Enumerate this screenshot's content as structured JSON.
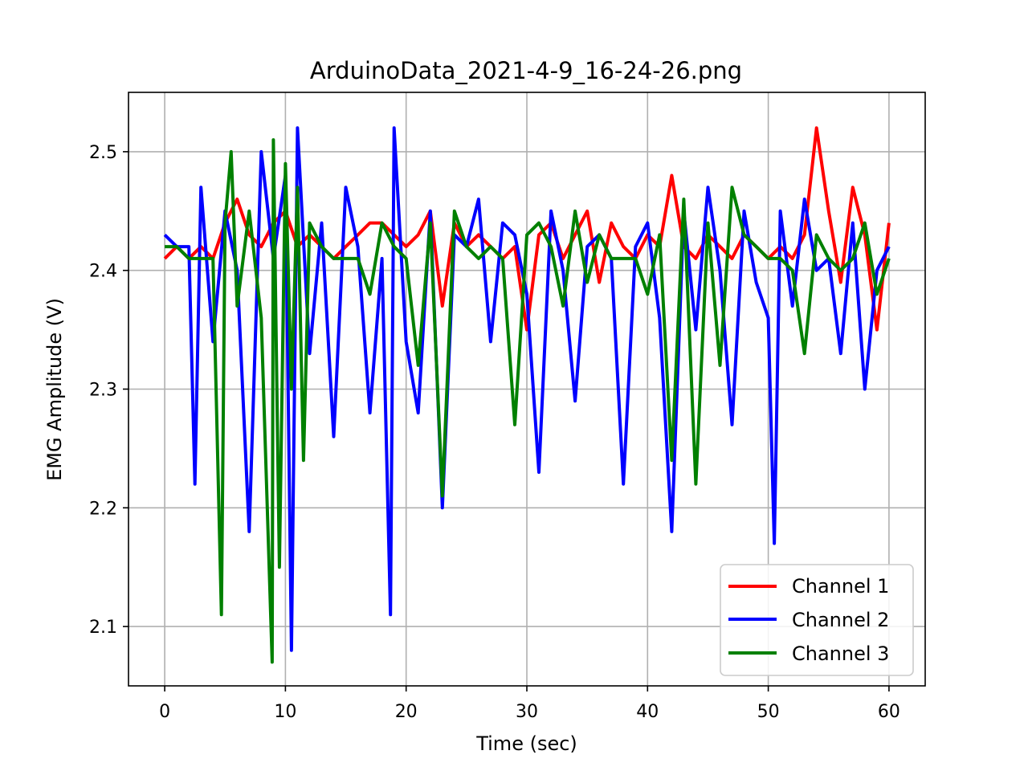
{
  "chart_data": {
    "type": "line",
    "title": "ArduinoData_2021-4-9_16-24-26.png",
    "xlabel": "Time (sec)",
    "ylabel": "EMG Amplitude (V)",
    "xlim": [
      -3,
      63
    ],
    "ylim": [
      2.05,
      2.55
    ],
    "xticks": [
      0,
      10,
      20,
      30,
      40,
      50,
      60
    ],
    "yticks": [
      2.1,
      2.2,
      2.3,
      2.4,
      2.5
    ],
    "grid": true,
    "legend_position": "lower-right",
    "series": [
      {
        "name": "Channel 1",
        "color": "#ff0000",
        "x": [
          0,
          1,
          2,
          3,
          4,
          5,
          6,
          7,
          8,
          9,
          10,
          11,
          12,
          13,
          14,
          15,
          16,
          17,
          18,
          19,
          20,
          21,
          22,
          23,
          24,
          25,
          26,
          27,
          28,
          29,
          30,
          31,
          32,
          33,
          34,
          35,
          36,
          37,
          38,
          39,
          40,
          41,
          42,
          43,
          44,
          45,
          46,
          47,
          48,
          49,
          50,
          51,
          52,
          53,
          54,
          55,
          56,
          57,
          58,
          59,
          60
        ],
        "y": [
          2.41,
          2.42,
          2.41,
          2.42,
          2.41,
          2.44,
          2.46,
          2.43,
          2.42,
          2.44,
          2.45,
          2.42,
          2.43,
          2.42,
          2.41,
          2.42,
          2.43,
          2.44,
          2.44,
          2.43,
          2.42,
          2.43,
          2.45,
          2.37,
          2.44,
          2.42,
          2.43,
          2.42,
          2.41,
          2.42,
          2.35,
          2.43,
          2.44,
          2.41,
          2.43,
          2.45,
          2.39,
          2.44,
          2.42,
          2.41,
          2.43,
          2.42,
          2.48,
          2.42,
          2.41,
          2.43,
          2.42,
          2.41,
          2.43,
          2.42,
          2.41,
          2.42,
          2.41,
          2.43,
          2.52,
          2.45,
          2.39,
          2.47,
          2.43,
          2.35,
          2.44
        ]
      },
      {
        "name": "Channel 2",
        "color": "#0000ff",
        "x": [
          0,
          1,
          2,
          2.5,
          3,
          4,
          5,
          6,
          7,
          8,
          9,
          10,
          10.5,
          11,
          12,
          13,
          14,
          15,
          16,
          17,
          18,
          18.7,
          19,
          20,
          21,
          22,
          23,
          24,
          25,
          26,
          27,
          28,
          29,
          30,
          31,
          32,
          33,
          34,
          35,
          36,
          37,
          38,
          39,
          40,
          41,
          42,
          43,
          44,
          45,
          46,
          47,
          48,
          49,
          50,
          50.5,
          51,
          52,
          53,
          54,
          55,
          56,
          57,
          58,
          59,
          60
        ],
        "y": [
          2.43,
          2.42,
          2.42,
          2.22,
          2.47,
          2.34,
          2.45,
          2.4,
          2.18,
          2.5,
          2.41,
          2.48,
          2.08,
          2.52,
          2.33,
          2.44,
          2.26,
          2.47,
          2.42,
          2.28,
          2.41,
          2.11,
          2.52,
          2.34,
          2.28,
          2.45,
          2.2,
          2.43,
          2.42,
          2.46,
          2.34,
          2.44,
          2.43,
          2.38,
          2.23,
          2.45,
          2.4,
          2.29,
          2.42,
          2.43,
          2.41,
          2.22,
          2.42,
          2.44,
          2.36,
          2.18,
          2.45,
          2.35,
          2.47,
          2.4,
          2.27,
          2.45,
          2.39,
          2.36,
          2.17,
          2.45,
          2.37,
          2.46,
          2.4,
          2.41,
          2.33,
          2.44,
          2.3,
          2.4,
          2.42
        ]
      },
      {
        "name": "Channel 3",
        "color": "#008000",
        "x": [
          0,
          1,
          2,
          3,
          4,
          4.7,
          5,
          5.5,
          6,
          7,
          8,
          8.9,
          9,
          9.5,
          10,
          10.5,
          11,
          11.5,
          12,
          13,
          14,
          15,
          16,
          17,
          18,
          19,
          20,
          21,
          22,
          23,
          24,
          25,
          26,
          27,
          28,
          29,
          30,
          31,
          32,
          33,
          34,
          35,
          36,
          37,
          38,
          39,
          40,
          41,
          42,
          43,
          44,
          45,
          46,
          47,
          48,
          49,
          50,
          51,
          52,
          53,
          54,
          55,
          56,
          57,
          58,
          59,
          60
        ],
        "y": [
          2.42,
          2.42,
          2.41,
          2.41,
          2.41,
          2.11,
          2.44,
          2.5,
          2.37,
          2.45,
          2.36,
          2.07,
          2.51,
          2.15,
          2.49,
          2.3,
          2.47,
          2.24,
          2.44,
          2.42,
          2.41,
          2.41,
          2.41,
          2.38,
          2.44,
          2.42,
          2.41,
          2.32,
          2.44,
          2.21,
          2.45,
          2.42,
          2.41,
          2.42,
          2.41,
          2.27,
          2.43,
          2.44,
          2.42,
          2.37,
          2.45,
          2.39,
          2.43,
          2.41,
          2.41,
          2.41,
          2.38,
          2.43,
          2.24,
          2.46,
          2.22,
          2.44,
          2.32,
          2.47,
          2.43,
          2.42,
          2.41,
          2.41,
          2.4,
          2.33,
          2.43,
          2.41,
          2.4,
          2.41,
          2.44,
          2.38,
          2.41
        ]
      }
    ]
  }
}
